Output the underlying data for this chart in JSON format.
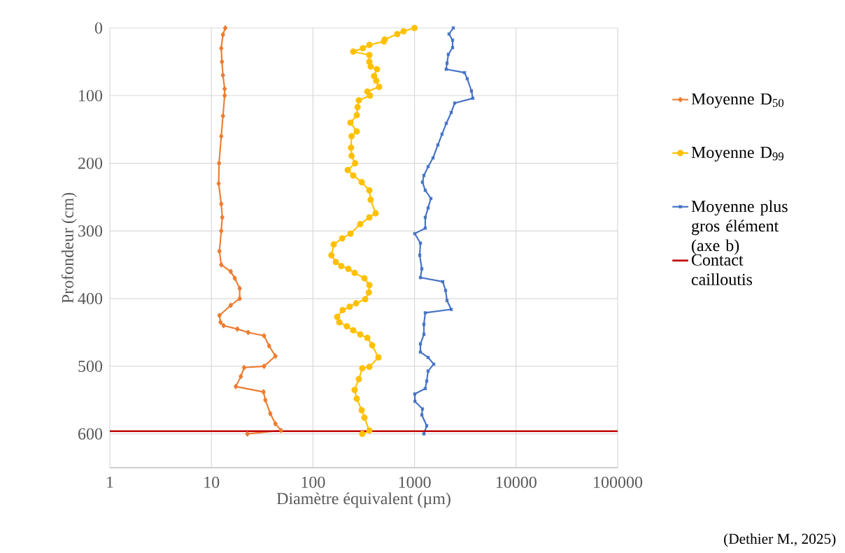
{
  "chart_data": {
    "type": "line",
    "xlabel": "Diamètre équivalent (µm)",
    "ylabel": "Profondeur  (cm)",
    "log": "x",
    "grid": true,
    "legend": "right",
    "xlim": [
      1,
      100000
    ],
    "xticks": [
      1,
      10,
      100,
      1000,
      10000,
      100000
    ],
    "ylim": [
      650,
      0
    ],
    "yticks": [
      0,
      100,
      200,
      300,
      400,
      500,
      600
    ],
    "series": [
      {
        "name": "Moyenne D$_{50}$",
        "color": "#ed7d31",
        "marker": "diamond",
        "x": [
          13.7,
          13,
          12.5,
          12.7,
          13,
          13.5,
          13.5,
          13,
          12.5,
          11.9,
          11.8,
          12.5,
          12.8,
          12.5,
          12,
          12.5,
          15.5,
          17,
          19,
          19,
          15.5,
          12,
          12.3,
          13.2,
          18,
          23,
          33,
          37,
          42.7,
          33,
          21,
          19.5,
          17.4,
          32.6,
          34,
          38,
          42.7,
          48.6,
          22.6
        ],
        "values": [
          0,
          10,
          30,
          50,
          70,
          90,
          100,
          130,
          160,
          200,
          230,
          260,
          280,
          300,
          330,
          350,
          360,
          370,
          385,
          400,
          410,
          425,
          435,
          440,
          445,
          450,
          455,
          470,
          485,
          500,
          502,
          515,
          530,
          538,
          550,
          570,
          585,
          595,
          600
        ]
      },
      {
        "name": "Moyenne D$_{99}$",
        "color": "#ffc000",
        "marker": "circle",
        "x": [
          1000,
          780,
          676,
          509,
          500,
          359,
          310,
          249,
          359,
          359,
          370,
          427,
          400,
          420,
          448,
          343,
          364,
          283,
          275,
          270,
          234,
          270,
          240,
          237,
          240,
          260,
          220,
          249,
          302,
          359,
          370,
          414,
          359,
          292,
          234,
          194,
          160,
          152,
          168,
          190,
          223,
          257,
          321,
          359,
          355,
          327,
          266,
          230,
          196,
          173,
          182,
          216,
          249,
          292,
          343,
          383,
          441,
          359,
          306,
          283,
          257,
          270,
          302,
          321,
          359,
          306
        ],
        "values": [
          0,
          5,
          9,
          17,
          20,
          25,
          30,
          35,
          40,
          50,
          57,
          61,
          71,
          78,
          87,
          94,
          100,
          107,
          117,
          129,
          140,
          153,
          160,
          177,
          189,
          200,
          210,
          218,
          228,
          240,
          254,
          274,
          280,
          290,
          304,
          311,
          320,
          336,
          346,
          352,
          356,
          362,
          370,
          380,
          391,
          401,
          407,
          412,
          417,
          427,
          435,
          441,
          447,
          453,
          458,
          469,
          487,
          501,
          503,
          519,
          535,
          548,
          565,
          576,
          595,
          600
        ]
      },
      {
        "name": "Moyenne plus gros élément (axe b)",
        "color": "#4472c4",
        "marker": "cross",
        "x": [
          2408,
          2188,
          2370,
          2370,
          2153,
          2089,
          2050,
          3105,
          3305,
          3637,
          3750,
          2485,
          2297,
          2056,
          1866,
          1698,
          1521,
          1361,
          1237,
          1197,
          1276,
          1449,
          1361,
          1276,
          1276,
          1006,
          1143,
          1125,
          1180,
          1143,
          1898,
          2022,
          2089,
          2297,
          1276,
          1237,
          1237,
          1143,
          1143,
          1361,
          1545,
          1361,
          1318,
          1276,
          1006,
          1010,
          1197,
          1180,
          1318,
          1237
        ],
        "values": [
          0,
          9,
          18,
          29,
          39,
          52,
          61,
          66,
          75,
          93,
          104,
          111,
          125,
          141,
          157,
          173,
          192,
          205,
          218,
          228,
          240,
          252,
          266,
          280,
          296,
          304,
          318,
          336,
          356,
          369,
          375,
          388,
          403,
          416,
          421,
          438,
          453,
          467,
          479,
          487,
          497,
          507,
          522,
          533,
          541,
          552,
          563,
          572,
          588,
          600
        ]
      }
    ],
    "ref_lines": [
      {
        "axis": "y",
        "value": 596,
        "label": "Contact cailloutis",
        "color": "#c00000"
      }
    ],
    "annotations": [
      "(Dethier M., 2025)"
    ]
  }
}
